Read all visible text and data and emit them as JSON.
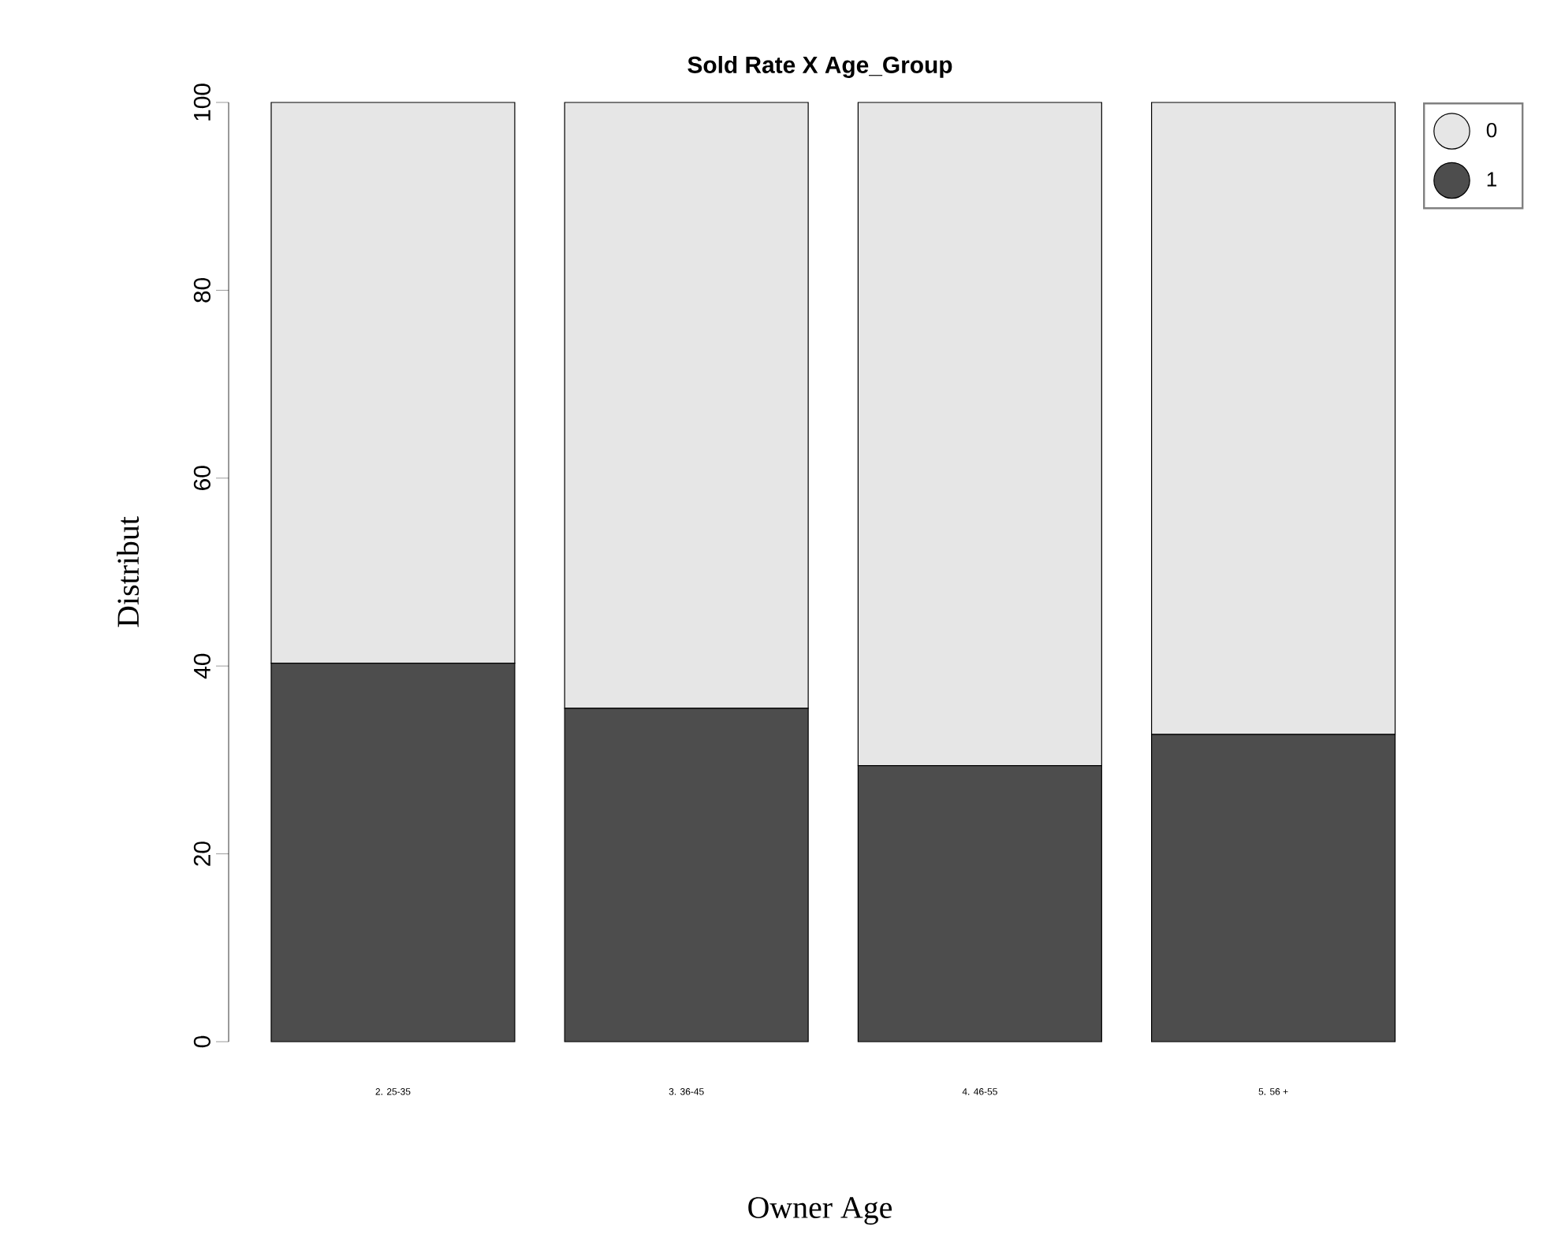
{
  "chart_data": {
    "type": "bar",
    "title": "Sold Rate X Age_Group",
    "xlabel": "Owner Age",
    "ylabel": "Distribut",
    "categories": [
      "2. 25-35",
      "3. 36-45",
      "4. 46-55",
      "5. 56 +"
    ],
    "series": [
      {
        "name": "1",
        "color": "#4d4d4d",
        "values": [
          40.3,
          35.5,
          29.4,
          32.7
        ]
      },
      {
        "name": "0",
        "color": "#e6e6e6",
        "values": [
          59.7,
          64.5,
          70.6,
          67.3
        ]
      }
    ],
    "stacked": true,
    "ylim": [
      0,
      100
    ],
    "yticks": [
      0,
      20,
      40,
      60,
      80,
      100
    ],
    "legend": "top right"
  }
}
